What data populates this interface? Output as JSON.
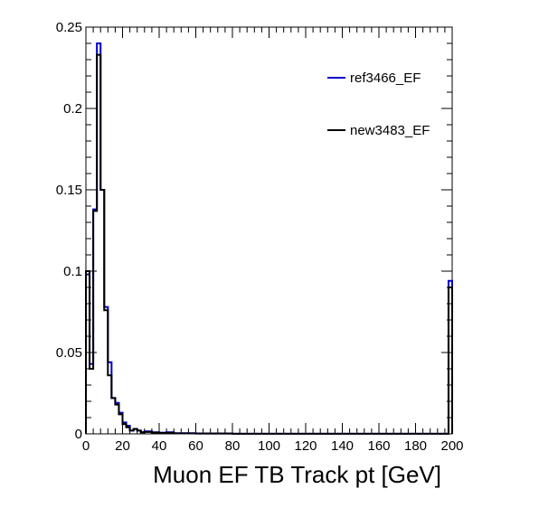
{
  "chart_data": {
    "type": "histogram-step",
    "title": "",
    "xlabel": "Muon EF TB Track pt [GeV]",
    "ylabel": "",
    "xlim": [
      0,
      200
    ],
    "ylim": [
      0,
      0.25
    ],
    "bin_width": 2,
    "x_major_ticks": [
      0,
      20,
      40,
      60,
      80,
      100,
      120,
      140,
      160,
      180,
      200
    ],
    "x_tick_labels": [
      "0",
      "20",
      "40",
      "60",
      "80",
      "100",
      "120",
      "140",
      "160",
      "180",
      "200"
    ],
    "y_major_ticks": [
      0,
      0.05,
      0.1,
      0.15,
      0.2,
      0.25
    ],
    "y_tick_labels": [
      "0",
      "0.05",
      "0.1",
      "0.15",
      "0.2",
      "0.25"
    ],
    "legend_position": "top-right",
    "series": [
      {
        "name": "ref3466_EF",
        "color": "#0000cc",
        "bins": [
          {
            "x0": 0,
            "x1": 2,
            "y": 0.098
          },
          {
            "x0": 2,
            "x1": 4,
            "y": 0.043
          },
          {
            "x0": 4,
            "x1": 6,
            "y": 0.138
          },
          {
            "x0": 6,
            "x1": 8,
            "y": 0.24
          },
          {
            "x0": 8,
            "x1": 10,
            "y": 0.15
          },
          {
            "x0": 10,
            "x1": 12,
            "y": 0.078
          },
          {
            "x0": 12,
            "x1": 14,
            "y": 0.044
          },
          {
            "x0": 14,
            "x1": 16,
            "y": 0.022
          },
          {
            "x0": 16,
            "x1": 18,
            "y": 0.019
          },
          {
            "x0": 18,
            "x1": 20,
            "y": 0.013
          },
          {
            "x0": 20,
            "x1": 22,
            "y": 0.007
          },
          {
            "x0": 22,
            "x1": 24,
            "y": 0.005
          },
          {
            "x0": 24,
            "x1": 26,
            "y": 0.002
          },
          {
            "x0": 26,
            "x1": 28,
            "y": 0.003
          },
          {
            "x0": 28,
            "x1": 30,
            "y": 0.002
          },
          {
            "x0": 30,
            "x1": 32,
            "y": 0.001
          },
          {
            "x0": 32,
            "x1": 36,
            "y": 0.0015
          },
          {
            "x0": 36,
            "x1": 40,
            "y": 0.001
          },
          {
            "x0": 40,
            "x1": 44,
            "y": 0.0007
          },
          {
            "x0": 44,
            "x1": 48,
            "y": 0.001
          },
          {
            "x0": 48,
            "x1": 60,
            "y": 0.0004
          },
          {
            "x0": 60,
            "x1": 80,
            "y": 0.0002
          },
          {
            "x0": 80,
            "x1": 198,
            "y": 0.0001
          },
          {
            "x0": 198,
            "x1": 200,
            "y": 0.094
          }
        ]
      },
      {
        "name": "new3483_EF",
        "color": "#000000",
        "bins": [
          {
            "x0": 0,
            "x1": 2,
            "y": 0.1
          },
          {
            "x0": 2,
            "x1": 4,
            "y": 0.04
          },
          {
            "x0": 4,
            "x1": 6,
            "y": 0.137
          },
          {
            "x0": 6,
            "x1": 8,
            "y": 0.233
          },
          {
            "x0": 8,
            "x1": 10,
            "y": 0.15
          },
          {
            "x0": 10,
            "x1": 12,
            "y": 0.076
          },
          {
            "x0": 12,
            "x1": 14,
            "y": 0.036
          },
          {
            "x0": 14,
            "x1": 16,
            "y": 0.022
          },
          {
            "x0": 16,
            "x1": 18,
            "y": 0.018
          },
          {
            "x0": 18,
            "x1": 20,
            "y": 0.012
          },
          {
            "x0": 20,
            "x1": 22,
            "y": 0.006
          },
          {
            "x0": 22,
            "x1": 24,
            "y": 0.004
          },
          {
            "x0": 24,
            "x1": 26,
            "y": 0.002
          },
          {
            "x0": 26,
            "x1": 28,
            "y": 0.003
          },
          {
            "x0": 28,
            "x1": 30,
            "y": 0.002
          },
          {
            "x0": 30,
            "x1": 32,
            "y": 0.001
          },
          {
            "x0": 32,
            "x1": 36,
            "y": 0.0012
          },
          {
            "x0": 36,
            "x1": 40,
            "y": 0.0008
          },
          {
            "x0": 40,
            "x1": 44,
            "y": 0.0006
          },
          {
            "x0": 44,
            "x1": 48,
            "y": 0.0007
          },
          {
            "x0": 48,
            "x1": 60,
            "y": 0.0003
          },
          {
            "x0": 60,
            "x1": 80,
            "y": 0.0002
          },
          {
            "x0": 80,
            "x1": 198,
            "y": 0.0001
          },
          {
            "x0": 198,
            "x1": 200,
            "y": 0.09
          }
        ]
      }
    ]
  }
}
